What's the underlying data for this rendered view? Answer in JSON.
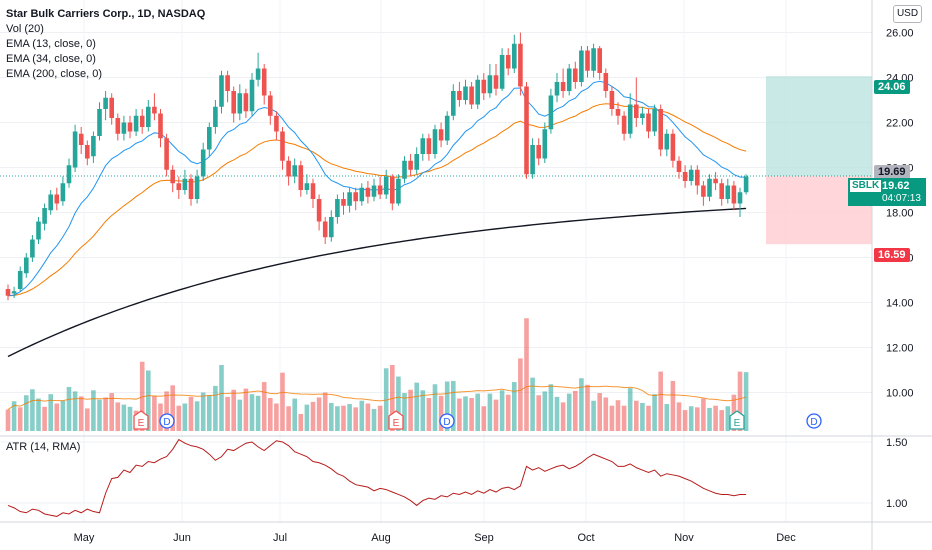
{
  "header": {
    "title": "Star Bulk Carriers Corp., 1D, NASDAQ",
    "indicators": [
      "Vol (20)",
      "EMA (13, close, 0)",
      "EMA (34, close, 0)",
      "EMA (200, close, 0)"
    ],
    "currency_button": "USD",
    "atr_label": "ATR (14, RMA)"
  },
  "price_tags": {
    "target": "24.06",
    "ema13_value": "19.69",
    "symbol": "SBLK",
    "last_price": "19.62",
    "countdown": "04:07:13",
    "stop": "16.59"
  },
  "events": [
    {
      "type": "E",
      "label": "E"
    },
    {
      "type": "D",
      "label": "D"
    },
    {
      "type": "E",
      "label": "E"
    },
    {
      "type": "D",
      "label": "D"
    },
    {
      "type": "E",
      "label": "E"
    },
    {
      "type": "D",
      "label": "D"
    }
  ],
  "colors": {
    "up": "#26a69a",
    "down": "#ef5350",
    "ema13": "#2196f3",
    "ema34": "#f57c00",
    "ema200": "#131722",
    "atr": "#b71c1c",
    "target_zone": "#b2dfdb",
    "stop_zone": "#ffcdd2"
  },
  "chart_data": [
    {
      "type": "candlestick",
      "title": "Star Bulk Carriers Corp., 1D, NASDAQ",
      "x_ticks": [
        "May",
        "Jun",
        "Jul",
        "Aug",
        "Sep",
        "Oct",
        "Nov",
        "Dec"
      ],
      "y_ticks": [
        10.0,
        12.0,
        14.0,
        16.0,
        18.0,
        20.0,
        22.0,
        24.0,
        26.0
      ],
      "y_tick_labels": [
        "10.00",
        "12.00",
        "14.00",
        "16.00",
        "18.00",
        "20.00",
        "22.00",
        "24.00",
        "26.00"
      ],
      "ylim": [
        9.0,
        27.0
      ],
      "grid": true,
      "candles": [
        [
          14.6,
          14.3,
          14.8,
          14.1
        ],
        [
          14.4,
          14.5,
          14.7,
          14.2
        ],
        [
          14.6,
          15.4,
          15.6,
          14.5
        ],
        [
          15.3,
          16.0,
          16.2,
          15.1
        ],
        [
          16.0,
          16.8,
          17.0,
          15.8
        ],
        [
          16.8,
          17.6,
          17.8,
          16.6
        ],
        [
          17.5,
          18.2,
          18.4,
          17.2
        ],
        [
          18.1,
          18.8,
          19.0,
          17.9
        ],
        [
          18.8,
          18.4,
          19.1,
          18.1
        ],
        [
          18.5,
          19.3,
          19.6,
          18.3
        ],
        [
          19.3,
          20.1,
          20.4,
          19.1
        ],
        [
          20.0,
          21.6,
          21.9,
          19.8
        ],
        [
          21.5,
          21.0,
          21.8,
          20.6
        ],
        [
          21.0,
          20.4,
          21.2,
          20.1
        ],
        [
          20.5,
          21.4,
          21.6,
          20.2
        ],
        [
          21.4,
          22.6,
          22.9,
          21.2
        ],
        [
          22.6,
          23.1,
          23.4,
          22.1
        ],
        [
          23.1,
          22.2,
          23.3,
          21.9
        ],
        [
          22.2,
          21.5,
          22.4,
          21.2
        ],
        [
          21.5,
          22.0,
          22.3,
          21.2
        ],
        [
          22.0,
          21.6,
          22.3,
          21.3
        ],
        [
          21.6,
          22.3,
          22.6,
          21.4
        ],
        [
          22.3,
          21.8,
          22.6,
          21.5
        ],
        [
          21.8,
          22.7,
          23.0,
          21.6
        ],
        [
          22.7,
          22.4,
          23.3,
          22.1
        ],
        [
          22.4,
          21.3,
          22.6,
          20.9
        ],
        [
          21.3,
          19.9,
          21.5,
          19.6
        ],
        [
          19.9,
          19.3,
          20.1,
          18.9
        ],
        [
          19.3,
          19.0,
          19.6,
          18.6
        ],
        [
          19.0,
          19.5,
          19.9,
          18.8
        ],
        [
          19.5,
          18.6,
          19.7,
          18.3
        ],
        [
          18.6,
          19.6,
          19.9,
          18.4
        ],
        [
          19.6,
          20.8,
          21.1,
          19.4
        ],
        [
          20.8,
          21.8,
          22.0,
          20.5
        ],
        [
          21.8,
          22.7,
          23.0,
          21.5
        ],
        [
          22.7,
          24.1,
          24.3,
          22.4
        ],
        [
          24.1,
          23.4,
          24.3,
          22.9
        ],
        [
          23.4,
          22.4,
          23.6,
          22.0
        ],
        [
          22.4,
          23.3,
          23.7,
          22.1
        ],
        [
          23.3,
          22.5,
          23.5,
          22.2
        ],
        [
          22.5,
          23.9,
          24.2,
          22.3
        ],
        [
          23.9,
          24.4,
          25.1,
          23.6
        ],
        [
          24.4,
          23.2,
          24.6,
          22.8
        ],
        [
          23.2,
          22.3,
          23.4,
          21.9
        ],
        [
          22.3,
          21.6,
          22.5,
          21.2
        ],
        [
          21.6,
          20.3,
          21.8,
          19.9
        ],
        [
          20.3,
          19.6,
          20.5,
          19.2
        ],
        [
          19.6,
          20.1,
          20.4,
          19.3
        ],
        [
          20.1,
          19.0,
          20.3,
          18.7
        ],
        [
          19.0,
          19.3,
          19.7,
          18.8
        ],
        [
          19.3,
          18.6,
          19.5,
          18.2
        ],
        [
          18.6,
          17.6,
          18.8,
          17.2
        ],
        [
          17.6,
          16.9,
          17.8,
          16.6
        ],
        [
          16.9,
          17.8,
          18.1,
          16.7
        ],
        [
          17.8,
          18.6,
          18.8,
          17.5
        ],
        [
          18.6,
          18.3,
          18.9,
          17.9
        ],
        [
          18.3,
          18.9,
          19.1,
          18.0
        ],
        [
          18.9,
          18.5,
          19.1,
          18.1
        ],
        [
          18.5,
          19.1,
          19.3,
          18.3
        ],
        [
          19.1,
          18.7,
          19.4,
          18.4
        ],
        [
          18.7,
          19.2,
          19.5,
          18.5
        ],
        [
          19.2,
          18.8,
          19.6,
          18.6
        ],
        [
          18.8,
          19.6,
          19.9,
          18.6
        ],
        [
          19.6,
          18.4,
          19.7,
          18.1
        ],
        [
          18.4,
          19.5,
          19.7,
          18.3
        ],
        [
          19.5,
          20.3,
          20.5,
          19.3
        ],
        [
          20.3,
          19.9,
          20.6,
          19.6
        ],
        [
          19.9,
          20.6,
          20.9,
          19.7
        ],
        [
          20.6,
          21.3,
          21.5,
          20.3
        ],
        [
          21.3,
          20.6,
          21.5,
          20.3
        ],
        [
          20.6,
          21.7,
          21.9,
          20.4
        ],
        [
          21.7,
          21.2,
          22.0,
          20.9
        ],
        [
          21.2,
          22.3,
          22.5,
          21.0
        ],
        [
          22.3,
          23.4,
          23.7,
          22.1
        ],
        [
          23.4,
          23.0,
          23.8,
          22.7
        ],
        [
          23.0,
          23.6,
          23.9,
          22.8
        ],
        [
          23.6,
          22.8,
          23.8,
          22.6
        ],
        [
          22.8,
          23.9,
          24.1,
          22.6
        ],
        [
          23.9,
          23.3,
          24.2,
          23.0
        ],
        [
          23.3,
          24.1,
          24.6,
          23.1
        ],
        [
          24.1,
          23.5,
          24.6,
          23.2
        ],
        [
          23.5,
          25.0,
          25.3,
          23.4
        ],
        [
          25.0,
          24.4,
          25.3,
          24.1
        ],
        [
          24.4,
          25.5,
          25.9,
          24.2
        ],
        [
          25.5,
          23.6,
          26.0,
          23.2
        ],
        [
          23.6,
          19.7,
          23.8,
          19.5
        ],
        [
          19.7,
          21.0,
          21.3,
          19.5
        ],
        [
          21.0,
          20.4,
          21.3,
          20.1
        ],
        [
          20.4,
          21.7,
          22.0,
          20.2
        ],
        [
          21.7,
          23.2,
          23.5,
          21.5
        ],
        [
          23.2,
          23.8,
          24.2,
          22.9
        ],
        [
          23.8,
          23.4,
          24.4,
          23.1
        ],
        [
          23.4,
          24.4,
          24.6,
          23.2
        ],
        [
          24.4,
          23.8,
          24.7,
          23.5
        ],
        [
          23.8,
          25.2,
          25.4,
          23.6
        ],
        [
          25.2,
          24.3,
          25.4,
          24.0
        ],
        [
          24.3,
          25.3,
          25.5,
          24.0
        ],
        [
          25.3,
          24.2,
          25.4,
          23.9
        ],
        [
          24.2,
          23.4,
          24.4,
          23.1
        ],
        [
          23.4,
          22.6,
          23.6,
          22.3
        ],
        [
          22.6,
          22.3,
          22.9,
          21.9
        ],
        [
          22.3,
          21.5,
          22.5,
          21.2
        ],
        [
          21.5,
          22.8,
          23.3,
          21.3
        ],
        [
          22.8,
          22.2,
          24.0,
          21.8
        ],
        [
          22.2,
          22.4,
          22.7,
          21.9
        ],
        [
          22.4,
          21.6,
          22.6,
          21.3
        ],
        [
          21.6,
          22.6,
          22.8,
          21.4
        ],
        [
          22.6,
          20.8,
          22.8,
          20.5
        ],
        [
          20.8,
          21.5,
          21.7,
          20.5
        ],
        [
          21.5,
          20.3,
          21.7,
          20.0
        ],
        [
          20.3,
          19.8,
          20.5,
          19.5
        ],
        [
          19.8,
          19.4,
          20.1,
          19.1
        ],
        [
          19.4,
          19.9,
          20.1,
          19.2
        ],
        [
          19.9,
          19.2,
          20.1,
          18.8
        ],
        [
          19.2,
          18.7,
          19.4,
          18.3
        ],
        [
          18.7,
          19.5,
          19.7,
          18.5
        ],
        [
          19.5,
          19.3,
          19.8,
          19.0
        ],
        [
          19.3,
          18.6,
          19.5,
          18.3
        ],
        [
          18.6,
          19.2,
          19.5,
          18.4
        ],
        [
          19.2,
          18.4,
          19.4,
          18.1
        ],
        [
          18.4,
          18.9,
          19.1,
          17.8
        ],
        [
          18.9,
          19.6,
          19.7,
          18.8
        ]
      ],
      "volume": [
        [
          0.39,
          0
        ],
        [
          0.54,
          1
        ],
        [
          0.43,
          0
        ],
        [
          0.65,
          1
        ],
        [
          0.76,
          1
        ],
        [
          0.59,
          1
        ],
        [
          0.44,
          0
        ],
        [
          0.67,
          1
        ],
        [
          0.5,
          0
        ],
        [
          0.55,
          1
        ],
        [
          0.8,
          1
        ],
        [
          0.72,
          1
        ],
        [
          0.63,
          0
        ],
        [
          0.41,
          0
        ],
        [
          0.74,
          1
        ],
        [
          0.57,
          1
        ],
        [
          0.61,
          0
        ],
        [
          0.69,
          0
        ],
        [
          0.52,
          0
        ],
        [
          0.48,
          1
        ],
        [
          0.44,
          1
        ],
        [
          0.37,
          0
        ],
        [
          1.26,
          0
        ],
        [
          1.1,
          1
        ],
        [
          0.64,
          0
        ],
        [
          0.5,
          0
        ],
        [
          0.72,
          0
        ],
        [
          0.83,
          0
        ],
        [
          0.46,
          0
        ],
        [
          0.5,
          1
        ],
        [
          0.62,
          0
        ],
        [
          0.54,
          1
        ],
        [
          0.7,
          1
        ],
        [
          0.65,
          1
        ],
        [
          0.82,
          1
        ],
        [
          1.2,
          1
        ],
        [
          0.62,
          0
        ],
        [
          0.75,
          0
        ],
        [
          0.57,
          1
        ],
        [
          0.77,
          0
        ],
        [
          0.67,
          1
        ],
        [
          0.64,
          1
        ],
        [
          0.89,
          0
        ],
        [
          0.6,
          0
        ],
        [
          0.5,
          0
        ],
        [
          1.06,
          0
        ],
        [
          0.45,
          0
        ],
        [
          0.59,
          1
        ],
        [
          0.31,
          0
        ],
        [
          0.48,
          1
        ],
        [
          0.53,
          0
        ],
        [
          0.61,
          0
        ],
        [
          0.7,
          0
        ],
        [
          0.51,
          1
        ],
        [
          0.45,
          1
        ],
        [
          0.46,
          0
        ],
        [
          0.49,
          1
        ],
        [
          0.43,
          0
        ],
        [
          0.55,
          1
        ],
        [
          0.5,
          0
        ],
        [
          0.4,
          1
        ],
        [
          0.46,
          0
        ],
        [
          1.14,
          1
        ],
        [
          1.2,
          0
        ],
        [
          0.99,
          1
        ],
        [
          0.69,
          1
        ],
        [
          0.75,
          0
        ],
        [
          0.88,
          1
        ],
        [
          0.74,
          1
        ],
        [
          0.6,
          0
        ],
        [
          0.85,
          1
        ],
        [
          0.64,
          0
        ],
        [
          0.9,
          1
        ],
        [
          0.91,
          1
        ],
        [
          0.59,
          0
        ],
        [
          0.63,
          1
        ],
        [
          0.6,
          0
        ],
        [
          0.68,
          1
        ],
        [
          0.45,
          0
        ],
        [
          0.68,
          1
        ],
        [
          0.57,
          0
        ],
        [
          0.74,
          1
        ],
        [
          0.66,
          0
        ],
        [
          0.89,
          1
        ],
        [
          1.32,
          0
        ],
        [
          2.05,
          0
        ],
        [
          0.97,
          1
        ],
        [
          0.65,
          0
        ],
        [
          0.72,
          1
        ],
        [
          0.85,
          1
        ],
        [
          0.62,
          1
        ],
        [
          0.52,
          0
        ],
        [
          0.68,
          1
        ],
        [
          0.73,
          0
        ],
        [
          0.96,
          1
        ],
        [
          0.84,
          0
        ],
        [
          0.55,
          1
        ],
        [
          0.69,
          0
        ],
        [
          0.61,
          0
        ],
        [
          0.46,
          0
        ],
        [
          0.56,
          0
        ],
        [
          0.46,
          0
        ],
        [
          0.78,
          1
        ],
        [
          0.55,
          0
        ],
        [
          0.51,
          1
        ],
        [
          0.46,
          0
        ],
        [
          0.67,
          1
        ],
        [
          1.08,
          0
        ],
        [
          0.49,
          1
        ],
        [
          0.91,
          0
        ],
        [
          0.52,
          0
        ],
        [
          0.38,
          0
        ],
        [
          0.45,
          1
        ],
        [
          0.43,
          0
        ],
        [
          0.59,
          0
        ],
        [
          0.42,
          1
        ],
        [
          0.46,
          0
        ],
        [
          0.38,
          0
        ],
        [
          0.45,
          1
        ],
        [
          0.66,
          0
        ],
        [
          1.08,
          0
        ],
        [
          1.07,
          1
        ]
      ],
      "volume_unit": "relative"
    },
    {
      "type": "line",
      "title": "ATR (14, RMA)",
      "y_ticks": [
        1.0,
        1.5
      ],
      "y_tick_labels": [
        "1.00",
        "1.50"
      ],
      "ylim": [
        0.88,
        1.57
      ],
      "values": [
        0.98,
        0.96,
        0.93,
        0.92,
        0.95,
        0.94,
        0.91,
        0.9,
        0.89,
        0.92,
        0.91,
        0.94,
        0.92,
        0.95,
        0.93,
        0.92,
        1.08,
        1.2,
        1.21,
        1.27,
        1.25,
        1.31,
        1.3,
        1.34,
        1.33,
        1.36,
        1.38,
        1.44,
        1.52,
        1.49,
        1.47,
        1.46,
        1.44,
        1.4,
        1.35,
        1.38,
        1.44,
        1.43,
        1.46,
        1.49,
        1.5,
        1.46,
        1.43,
        1.47,
        1.51,
        1.5,
        1.47,
        1.42,
        1.4,
        1.38,
        1.34,
        1.33,
        1.31,
        1.28,
        1.24,
        1.22,
        1.18,
        1.15,
        1.14,
        1.13,
        1.1,
        1.12,
        1.11,
        1.09,
        1.07,
        1.05,
        1.02,
        0.98,
        1.02,
        1.04,
        1.03,
        1.06,
        1.05,
        1.08,
        1.07,
        1.09,
        1.07,
        1.1,
        1.08,
        1.11,
        1.09,
        1.12,
        1.13,
        1.11,
        1.14,
        1.3,
        1.27,
        1.29,
        1.26,
        1.28,
        1.3,
        1.31,
        1.28,
        1.3,
        1.33,
        1.37,
        1.4,
        1.38,
        1.36,
        1.34,
        1.3,
        1.3,
        1.32,
        1.29,
        1.27,
        1.25,
        1.27,
        1.22,
        1.24,
        1.23,
        1.22,
        1.2,
        1.18,
        1.15,
        1.12,
        1.1,
        1.08,
        1.07,
        1.07,
        1.06,
        1.07,
        1.07
      ]
    }
  ]
}
